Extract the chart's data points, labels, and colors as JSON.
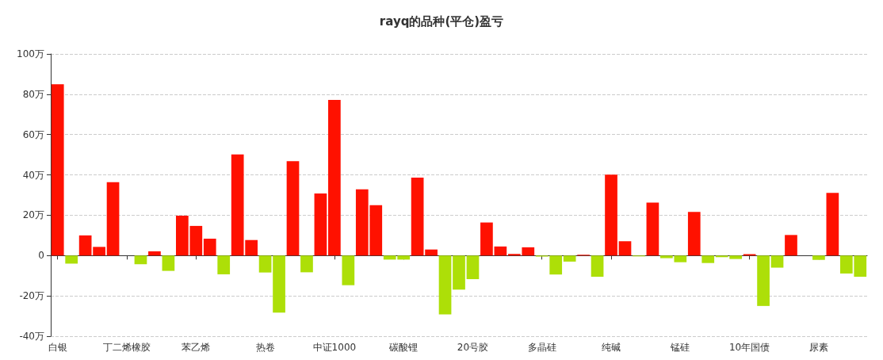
{
  "chart_data": {
    "type": "bar",
    "title": "rayq的品种(平仓)盈亏",
    "categories": [
      "白银",
      null,
      null,
      null,
      null,
      "丁二烯橡胶",
      null,
      null,
      null,
      null,
      "苯乙烯",
      null,
      null,
      null,
      null,
      "热卷",
      null,
      null,
      null,
      null,
      "中证1000",
      null,
      null,
      null,
      null,
      "碳酸锂",
      null,
      null,
      null,
      null,
      "20号胶",
      null,
      null,
      null,
      null,
      "多晶硅",
      null,
      null,
      null,
      null,
      "纯碱",
      null,
      null,
      null,
      null,
      "锰硅",
      null,
      null,
      null,
      null,
      "10年国债",
      null,
      null,
      null,
      null,
      "尿素",
      null,
      null,
      null
    ],
    "values": [
      85,
      -4,
      10,
      4.3,
      36.4,
      0,
      -4.3,
      2.1,
      -7.6,
      19.8,
      14.7,
      8.4,
      -9.3,
      50.2,
      7.7,
      -8.4,
      -28.3,
      46.8,
      -8.3,
      30.8,
      77.2,
      -14.7,
      32.9,
      25,
      -2,
      -2,
      38.7,
      3,
      -29.2,
      -16.9,
      -11.7,
      16.4,
      4.5,
      0.8,
      4.1,
      -0.5,
      -9.4,
      -3,
      0.4,
      -10.5,
      40.1,
      7.1,
      -0.4,
      26.3,
      -1.3,
      -3.3,
      21.6,
      -3.7,
      -0.8,
      -1.7,
      0.7,
      -25,
      -6,
      10.2,
      0,
      -2.1,
      31.1,
      -8.9,
      -10.5
    ],
    "colors": [
      "#ff1100",
      "#addf08",
      "#ff1100",
      "#ff1100",
      "#ff1100",
      "#ff1100",
      "#addf08",
      "#ff1100",
      "#addf08",
      "#ff1100",
      "#ff1100",
      "#ff1100",
      "#addf08",
      "#ff1100",
      "#ff1100",
      "#addf08",
      "#addf08",
      "#ff1100",
      "#addf08",
      "#ff1100",
      "#ff1100",
      "#addf08",
      "#ff1100",
      "#ff1100",
      "#addf08",
      "#addf08",
      "#ff1100",
      "#ff1100",
      "#addf08",
      "#addf08",
      "#addf08",
      "#ff1100",
      "#ff1100",
      "#ff1100",
      "#ff1100",
      "#addf08",
      "#addf08",
      "#addf08",
      "#ff1100",
      "#addf08",
      "#ff1100",
      "#ff1100",
      "#addf08",
      "#ff1100",
      "#addf08",
      "#addf08",
      "#ff1100",
      "#addf08",
      "#addf08",
      "#addf08",
      "#ff1100",
      "#addf08",
      "#addf08",
      "#ff1100",
      "#ff1100",
      "#addf08",
      "#ff1100",
      "#addf08",
      "#addf08"
    ],
    "ylim": [
      -40,
      100
    ],
    "yticks": [
      {
        "value": -40,
        "label": "-40万"
      },
      {
        "value": -20,
        "label": "-20万"
      },
      0,
      {
        "value": 20,
        "label": "20万"
      },
      {
        "value": 40,
        "label": "40万"
      },
      {
        "value": 60,
        "label": "60万"
      },
      {
        "value": 80,
        "label": "80万"
      },
      {
        "value": 100,
        "label": "100万"
      }
    ],
    "grid": "y"
  }
}
